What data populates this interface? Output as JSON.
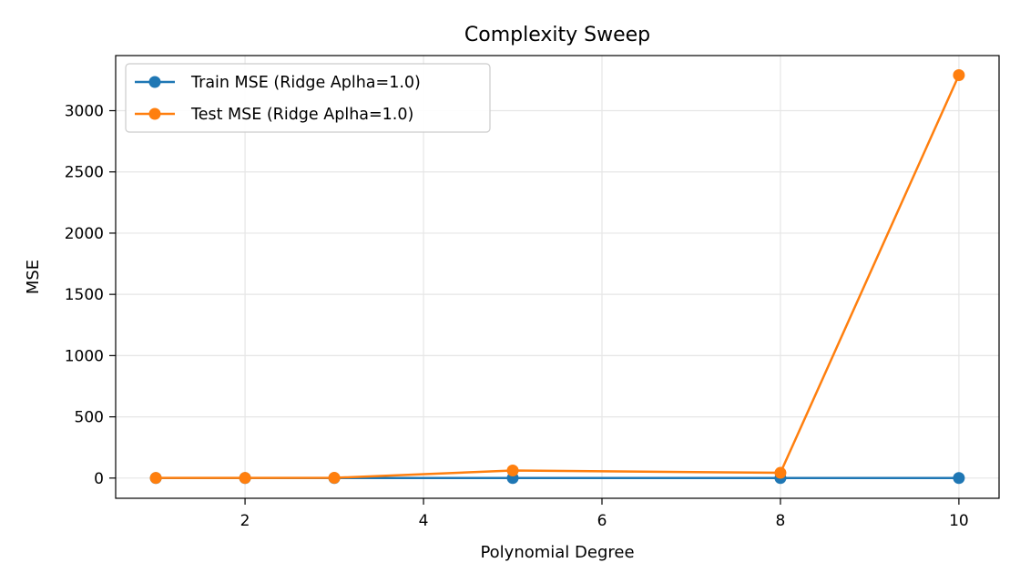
{
  "chart_data": {
    "type": "line",
    "title": "Complexity Sweep",
    "xlabel": "Polynomial Degree",
    "ylabel": "MSE",
    "x": [
      1,
      2,
      3,
      5,
      8,
      10
    ],
    "xlim": [
      0.55,
      10.45
    ],
    "ylim": [
      -165,
      3450
    ],
    "xticks": [
      2,
      4,
      6,
      8,
      10
    ],
    "yticks": [
      0,
      500,
      1000,
      1500,
      2000,
      2500,
      3000
    ],
    "grid": true,
    "legend_position": "top-left",
    "series": [
      {
        "name": "Train MSE (Ridge Aplha=1.0)",
        "color": "#1f77b4",
        "marker": "circle",
        "values": [
          0.5,
          0.4,
          0.4,
          0.3,
          0.3,
          0.3
        ]
      },
      {
        "name": "Test MSE (Ridge Aplha=1.0)",
        "color": "#ff7f0e",
        "marker": "circle",
        "values": [
          1,
          1,
          2,
          62,
          43,
          3290
        ]
      }
    ]
  }
}
